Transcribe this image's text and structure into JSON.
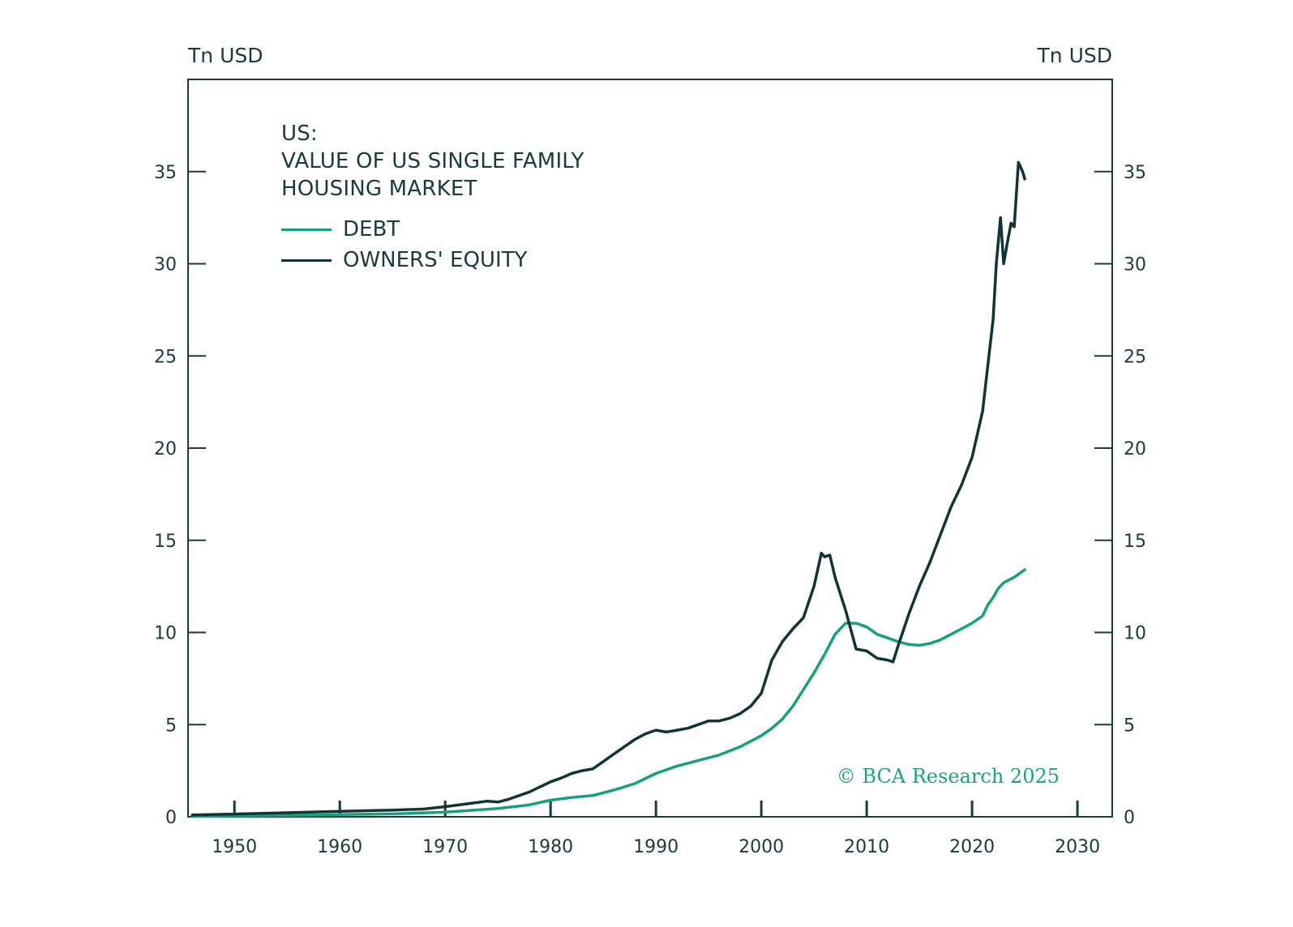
{
  "left_unit": "Tn USD",
  "right_unit": "Tn USD",
  "copyright": "© BCA Research 2025",
  "colors": {
    "debt": "#16a07c",
    "equity": "#123434",
    "axis": "#1b3a3a"
  },
  "chart_data": {
    "type": "line",
    "title": [
      "US:",
      "VALUE OF US SINGLE FAMILY",
      "HOUSING MARKET"
    ],
    "xlabel": "",
    "ylabel": "Tn USD",
    "xlim": [
      1945.6,
      2033.3
    ],
    "ylim": [
      0,
      40
    ],
    "x_ticks": [
      1950,
      1960,
      1970,
      1980,
      1990,
      2000,
      2010,
      2020,
      2030
    ],
    "y_ticks": [
      0,
      5,
      10,
      15,
      20,
      25,
      30,
      35
    ],
    "grid": false,
    "legend_position": "top-left",
    "series": [
      {
        "name": "DEBT",
        "color": "#16a07c",
        "x": [
          1946,
          1950,
          1955,
          1960,
          1965,
          1970,
          1975,
          1978,
          1980,
          1982,
          1984,
          1986,
          1988,
          1990,
          1992,
          1994,
          1996,
          1998,
          2000,
          2001,
          2002,
          2003,
          2004,
          2005,
          2006,
          2007,
          2008,
          2009,
          2010,
          2011,
          2012,
          2013,
          2014,
          2015,
          2016,
          2017,
          2018,
          2019,
          2020,
          2021,
          2021.5,
          2022,
          2022.5,
          2023,
          2024,
          2025
        ],
        "values": [
          0.02,
          0.05,
          0.08,
          0.12,
          0.16,
          0.25,
          0.45,
          0.65,
          0.9,
          1.05,
          1.15,
          1.45,
          1.8,
          2.35,
          2.75,
          3.05,
          3.35,
          3.8,
          4.4,
          4.8,
          5.3,
          6.0,
          6.9,
          7.8,
          8.8,
          9.9,
          10.5,
          10.5,
          10.3,
          9.9,
          9.7,
          9.5,
          9.35,
          9.3,
          9.4,
          9.6,
          9.9,
          10.2,
          10.5,
          10.9,
          11.5,
          11.9,
          12.4,
          12.7,
          13.0,
          13.4
        ]
      },
      {
        "name": "OWNERS' EQUITY",
        "color": "#123434",
        "x": [
          1946,
          1950,
          1955,
          1960,
          1965,
          1968,
          1970,
          1972,
          1974,
          1975,
          1976,
          1978,
          1980,
          1981,
          1982,
          1983,
          1984,
          1985,
          1986,
          1987,
          1988,
          1989,
          1990,
          1991,
          1992,
          1993,
          1994,
          1995,
          1996,
          1997,
          1998,
          1999,
          2000,
          2001,
          2002,
          2003,
          2004,
          2005,
          2005.7,
          2006,
          2006.5,
          2007,
          2008,
          2009,
          2010,
          2011,
          2012,
          2012.5,
          2013,
          2014,
          2015,
          2016,
          2017,
          2018,
          2019,
          2020,
          2021,
          2021.5,
          2022,
          2022.3,
          2022.7,
          2023,
          2023.3,
          2023.7,
          2024,
          2024.4,
          2024.8,
          2025
        ],
        "values": [
          0.1,
          0.15,
          0.22,
          0.3,
          0.36,
          0.42,
          0.55,
          0.7,
          0.85,
          0.8,
          0.95,
          1.35,
          1.9,
          2.1,
          2.35,
          2.5,
          2.6,
          3.0,
          3.4,
          3.8,
          4.2,
          4.5,
          4.7,
          4.6,
          4.7,
          4.8,
          5.0,
          5.2,
          5.2,
          5.35,
          5.6,
          6.0,
          6.7,
          8.5,
          9.5,
          10.2,
          10.8,
          12.5,
          14.3,
          14.1,
          14.2,
          13.0,
          11.2,
          9.1,
          9.0,
          8.6,
          8.5,
          8.4,
          9.3,
          11.0,
          12.5,
          13.8,
          15.3,
          16.8,
          18.0,
          19.5,
          22.0,
          24.5,
          27.0,
          30.0,
          32.5,
          30.0,
          31.0,
          32.2,
          32.0,
          35.5,
          35.0,
          34.6
        ]
      }
    ]
  }
}
